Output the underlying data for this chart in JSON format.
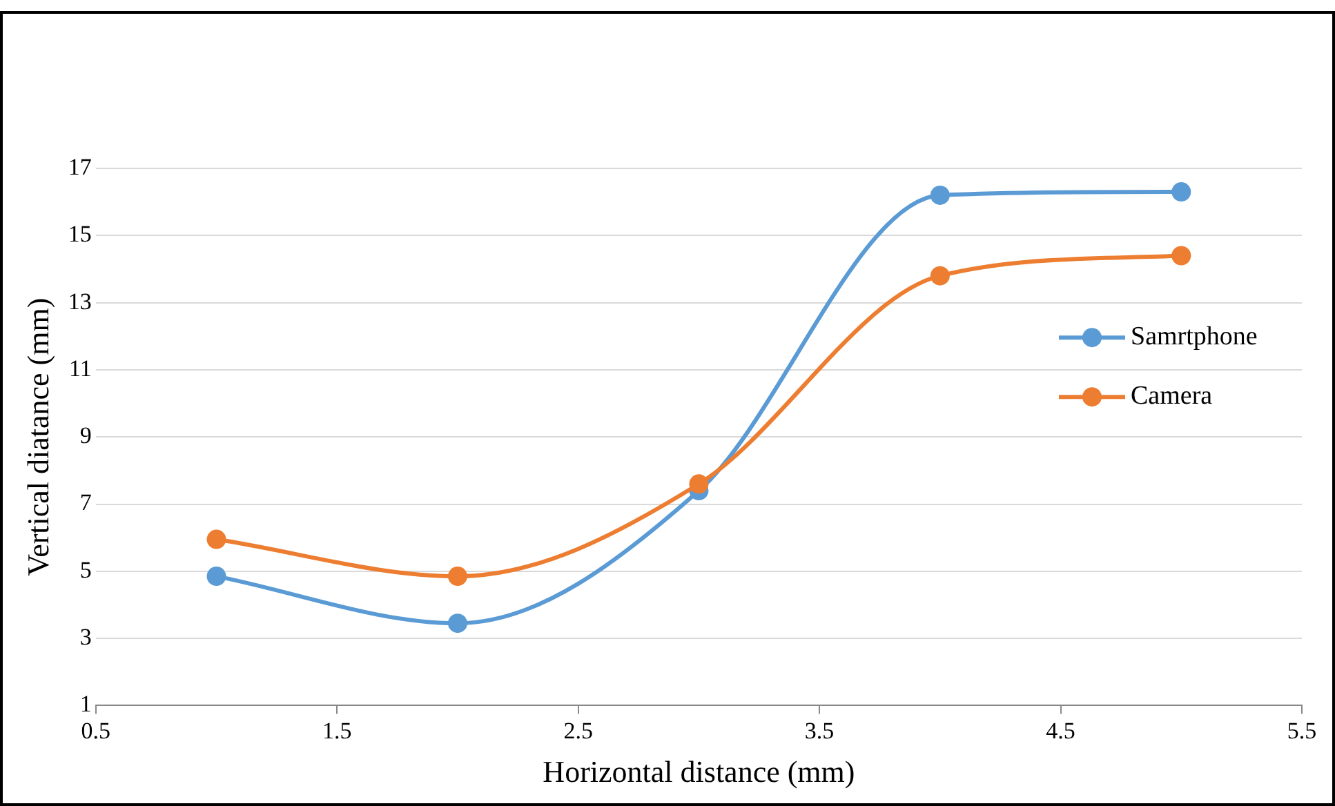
{
  "chart_data": {
    "type": "line",
    "xlabel": "Horizontal distance (mm)",
    "ylabel": "Vertical diatance (mm)",
    "x": [
      1,
      2,
      3,
      4,
      5
    ],
    "series": [
      {
        "name": "Samrtphone",
        "color": "#5b9bd5",
        "values": [
          4.85,
          3.45,
          7.4,
          16.2,
          16.3
        ]
      },
      {
        "name": "Camera",
        "color": "#ed7d31",
        "values": [
          5.95,
          4.85,
          7.6,
          13.8,
          14.4
        ]
      }
    ],
    "xlim": [
      0.5,
      5.5
    ],
    "xticks": [
      0.5,
      1.5,
      2.5,
      3.5,
      4.5,
      5.5
    ],
    "ylim": [
      1,
      17
    ],
    "yticks": [
      1,
      3,
      5,
      7,
      9,
      11,
      13,
      15,
      17
    ],
    "grid": "y",
    "legend": "right",
    "marker": "circle",
    "line_style": "solid"
  }
}
